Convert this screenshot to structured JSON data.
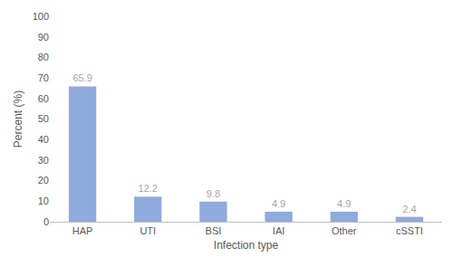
{
  "chart_data": {
    "type": "bar",
    "x_label": "Infection type",
    "y_label": "Percent (%)",
    "categories": [
      "HAP",
      "UTI",
      "BSI",
      "IAI",
      "Other",
      "cSSTI"
    ],
    "values": [
      65.9,
      12.2,
      9.8,
      4.9,
      4.9,
      2.4
    ],
    "color": "#8faadc",
    "ylim": [
      0,
      100
    ],
    "yticks": [
      0,
      10,
      20,
      30,
      40,
      50,
      60,
      70,
      80,
      90,
      100
    ],
    "grid": false,
    "data_labels": true
  }
}
